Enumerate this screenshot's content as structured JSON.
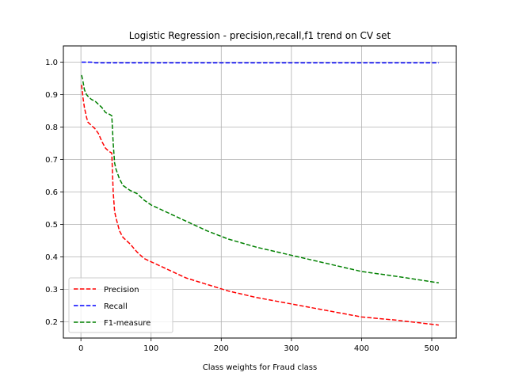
{
  "chart_data": {
    "type": "line",
    "title": "Logistic Regression - precision,recall,f1 trend on CV set",
    "xlabel": "Class weights for Fraud class",
    "ylabel": "",
    "xlim": [
      -25,
      535
    ],
    "ylim": [
      0.15,
      1.05
    ],
    "xticks": [
      0,
      100,
      200,
      300,
      400,
      500
    ],
    "yticks": [
      0.2,
      0.3,
      0.4,
      0.5,
      0.6,
      0.7,
      0.8,
      0.9,
      1.0
    ],
    "xtick_labels": [
      "0",
      "100",
      "200",
      "300",
      "400",
      "500"
    ],
    "ytick_labels": [
      "0.2",
      "0.3",
      "0.4",
      "0.5",
      "0.6",
      "0.7",
      "0.8",
      "0.9",
      "1.0"
    ],
    "grid": true,
    "legend_position": "lower-left",
    "series": [
      {
        "name": "Precision",
        "color": "#ff0000",
        "x": [
          1,
          3,
          5,
          8,
          10,
          15,
          20,
          25,
          30,
          35,
          40,
          44,
          46,
          48,
          50,
          55,
          60,
          70,
          80,
          90,
          100,
          120,
          150,
          180,
          210,
          250,
          300,
          350,
          400,
          450,
          510
        ],
        "y": [
          0.93,
          0.89,
          0.86,
          0.83,
          0.815,
          0.805,
          0.795,
          0.78,
          0.755,
          0.735,
          0.725,
          0.72,
          0.6,
          0.54,
          0.52,
          0.48,
          0.46,
          0.44,
          0.415,
          0.395,
          0.385,
          0.365,
          0.335,
          0.315,
          0.295,
          0.275,
          0.255,
          0.235,
          0.215,
          0.205,
          0.19
        ]
      },
      {
        "name": "Recall",
        "color": "#0000ff",
        "x": [
          1,
          10,
          15,
          20,
          100,
          200,
          300,
          400,
          510
        ],
        "y": [
          1.0,
          1.0,
          1.0,
          0.998,
          0.998,
          0.998,
          0.998,
          0.998,
          0.998
        ]
      },
      {
        "name": "F1-measure",
        "color": "#008000",
        "x": [
          1,
          3,
          5,
          8,
          10,
          15,
          20,
          25,
          30,
          35,
          40,
          44,
          46,
          48,
          50,
          55,
          60,
          70,
          80,
          90,
          100,
          120,
          150,
          180,
          210,
          250,
          300,
          350,
          400,
          450,
          510
        ],
        "y": [
          0.96,
          0.94,
          0.915,
          0.9,
          0.895,
          0.885,
          0.88,
          0.87,
          0.86,
          0.845,
          0.84,
          0.835,
          0.75,
          0.69,
          0.67,
          0.64,
          0.62,
          0.605,
          0.595,
          0.575,
          0.56,
          0.54,
          0.51,
          0.48,
          0.455,
          0.43,
          0.405,
          0.38,
          0.355,
          0.34,
          0.32
        ]
      }
    ]
  }
}
